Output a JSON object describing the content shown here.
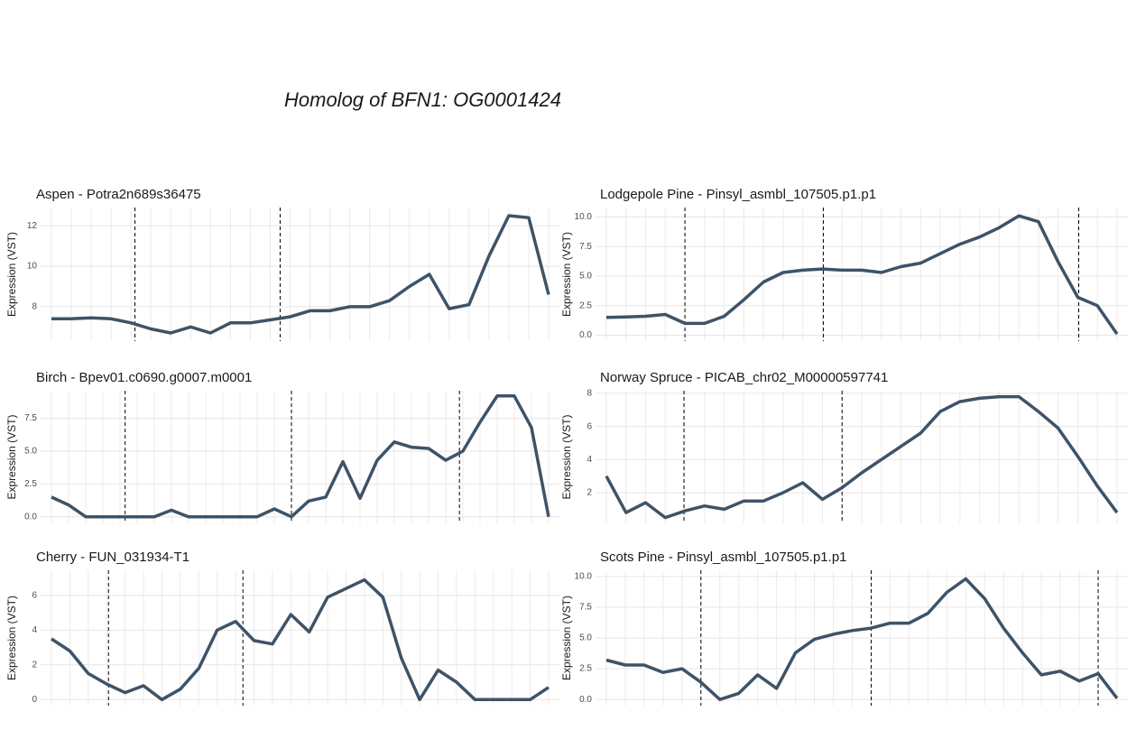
{
  "title": "Homolog of BFN1:  OG0001424",
  "chart_data": [
    {
      "type": "line",
      "title": "Aspen - Potra2n689s36475",
      "y_label": "Expression (VST)",
      "color": "#3e5367",
      "grid": true,
      "categories": [
        null,
        null,
        null,
        null,
        null,
        null,
        null,
        null,
        null,
        null,
        null,
        null,
        null,
        null,
        null,
        null,
        null,
        null,
        null,
        null,
        null,
        null,
        null,
        null,
        null,
        null
      ],
      "values": [
        7.4,
        7.4,
        7.45,
        7.4,
        7.2,
        6.9,
        6.7,
        7.0,
        6.7,
        7.2,
        7.2,
        7.35,
        7.5,
        7.8,
        7.8,
        8.0,
        8.0,
        8.3,
        9.0,
        9.6,
        7.9,
        8.1,
        10.5,
        12.5,
        12.4,
        8.6
      ],
      "ylim": [
        6.3,
        12.9
      ],
      "yticks": [
        8,
        10,
        12
      ],
      "vlines": [
        4.2,
        11.5
      ]
    },
    {
      "type": "line",
      "title": "Lodgepole Pine - Pinsyl_asmbl_107505.p1.p1",
      "y_label": "Expression (VST)",
      "color": "#3e5367",
      "grid": true,
      "categories": [
        null,
        null,
        null,
        null,
        null,
        null,
        null,
        null,
        null,
        null,
        null,
        null,
        null,
        null,
        null,
        null,
        null,
        null,
        null,
        null,
        null,
        null,
        null,
        null,
        null,
        null,
        null
      ],
      "values": [
        1.5,
        1.55,
        1.6,
        1.75,
        1.0,
        1.0,
        1.6,
        3.0,
        4.5,
        5.3,
        5.5,
        5.6,
        5.5,
        5.5,
        5.3,
        5.8,
        6.1,
        6.9,
        7.7,
        8.3,
        9.1,
        10.1,
        9.6,
        6.2,
        3.2,
        2.5,
        0.1
      ],
      "ylim": [
        -0.5,
        10.8
      ],
      "yticks": [
        {
          "value": 0,
          "label": "0.0"
        },
        {
          "value": 2.5,
          "label": "2.5"
        },
        {
          "value": 5,
          "label": "5.0"
        },
        {
          "value": 7.5,
          "label": "7.5"
        },
        {
          "value": 10,
          "label": "10.0"
        }
      ],
      "vlines": [
        4.0,
        11.05,
        24.05
      ]
    },
    {
      "type": "line",
      "title": "Birch - Bpev01.c0690.g0007.m0001",
      "y_label": "Expression (VST)",
      "color": "#3e5367",
      "grid": true,
      "categories": [
        null,
        null,
        null,
        null,
        null,
        null,
        null,
        null,
        null,
        null,
        null,
        null,
        null,
        null,
        null,
        null,
        null,
        null,
        null,
        null,
        null,
        null,
        null,
        null,
        null,
        null,
        null,
        null,
        null,
        null
      ],
      "values": [
        1.5,
        0.9,
        0,
        0,
        0,
        0,
        0,
        0.5,
        0,
        0,
        0,
        0,
        0,
        0.6,
        0,
        1.2,
        1.5,
        4.2,
        1.4,
        4.3,
        5.7,
        5.3,
        5.2,
        4.3,
        5.0,
        7.2,
        9.2,
        9.2,
        6.8,
        0
      ],
      "ylim": [
        -0.5,
        9.6
      ],
      "yticks": [
        {
          "value": 0,
          "label": "0.0"
        },
        {
          "value": 2.5,
          "label": "2.5"
        },
        {
          "value": 5,
          "label": "5.0"
        },
        {
          "value": 7.5,
          "label": "7.5"
        }
      ],
      "vlines": [
        4.3,
        14.0,
        23.8
      ]
    },
    {
      "type": "line",
      "title": "Norway Spruce - PICAB_chr02_M00000597741",
      "y_label": "Expression (VST)",
      "color": "#3e5367",
      "grid": true,
      "categories": [
        null,
        null,
        null,
        null,
        null,
        null,
        null,
        null,
        null,
        null,
        null,
        null,
        null,
        null,
        null,
        null,
        null,
        null,
        null,
        null,
        null,
        null,
        null,
        null,
        null,
        null,
        null
      ],
      "values": [
        3.0,
        0.8,
        1.4,
        0.5,
        0.9,
        1.2,
        1.0,
        1.5,
        1.5,
        2.0,
        2.6,
        1.6,
        2.3,
        3.2,
        4.0,
        4.8,
        5.6,
        6.9,
        7.5,
        7.7,
        7.8,
        7.8,
        6.9,
        5.9,
        4.2,
        2.4,
        0.8
      ],
      "ylim": [
        0.15,
        8.16
      ],
      "yticks": [
        2,
        4,
        6,
        8
      ],
      "vlines": [
        3.95,
        12.0
      ]
    },
    {
      "type": "line",
      "title": "Cherry - FUN_031934-T1",
      "y_label": "Expression (VST)",
      "color": "#3e5367",
      "grid": true,
      "categories": [
        null,
        null,
        null,
        null,
        null,
        null,
        null,
        null,
        null,
        null,
        null,
        null,
        null,
        null,
        null,
        null,
        null,
        null,
        null,
        null,
        null,
        null,
        null,
        null,
        null,
        null,
        null,
        null
      ],
      "values": [
        3.5,
        2.8,
        1.5,
        0.9,
        0.4,
        0.8,
        0,
        0.6,
        1.8,
        4.0,
        4.5,
        3.4,
        3.2,
        4.9,
        3.9,
        5.9,
        6.4,
        6.9,
        5.9,
        2.4,
        0,
        1.7,
        1.0,
        0,
        0,
        0,
        0,
        0.7
      ],
      "ylim": [
        -0.35,
        7.45
      ],
      "yticks": [
        0,
        2,
        4,
        6
      ],
      "vlines": [
        3.1,
        10.4
      ]
    },
    {
      "type": "line",
      "title": "Scots Pine - Pinsyl_asmbl_107505.p1.p1",
      "y_label": "Expression (VST)",
      "color": "#3e5367",
      "grid": true,
      "categories": [
        null,
        null,
        null,
        null,
        null,
        null,
        null,
        null,
        null,
        null,
        null,
        null,
        null,
        null,
        null,
        null,
        null,
        null,
        null,
        null,
        null,
        null,
        null,
        null,
        null,
        null,
        null,
        null
      ],
      "values": [
        3.2,
        2.8,
        2.8,
        2.2,
        2.5,
        1.4,
        0,
        0.5,
        2.0,
        0.9,
        3.8,
        4.9,
        5.3,
        5.6,
        5.8,
        6.2,
        6.2,
        7.0,
        8.7,
        9.8,
        8.2,
        5.8,
        3.8,
        2.0,
        2.3,
        1.5,
        2.1,
        0.1
      ],
      "ylim": [
        -0.5,
        10.5
      ],
      "yticks": [
        {
          "value": 0,
          "label": "0.0"
        },
        {
          "value": 2.5,
          "label": "2.5"
        },
        {
          "value": 5,
          "label": "5.0"
        },
        {
          "value": 7.5,
          "label": "7.5"
        },
        {
          "value": 10,
          "label": "10.0"
        }
      ],
      "vlines": [
        5.0,
        14.0,
        26.0
      ]
    }
  ]
}
